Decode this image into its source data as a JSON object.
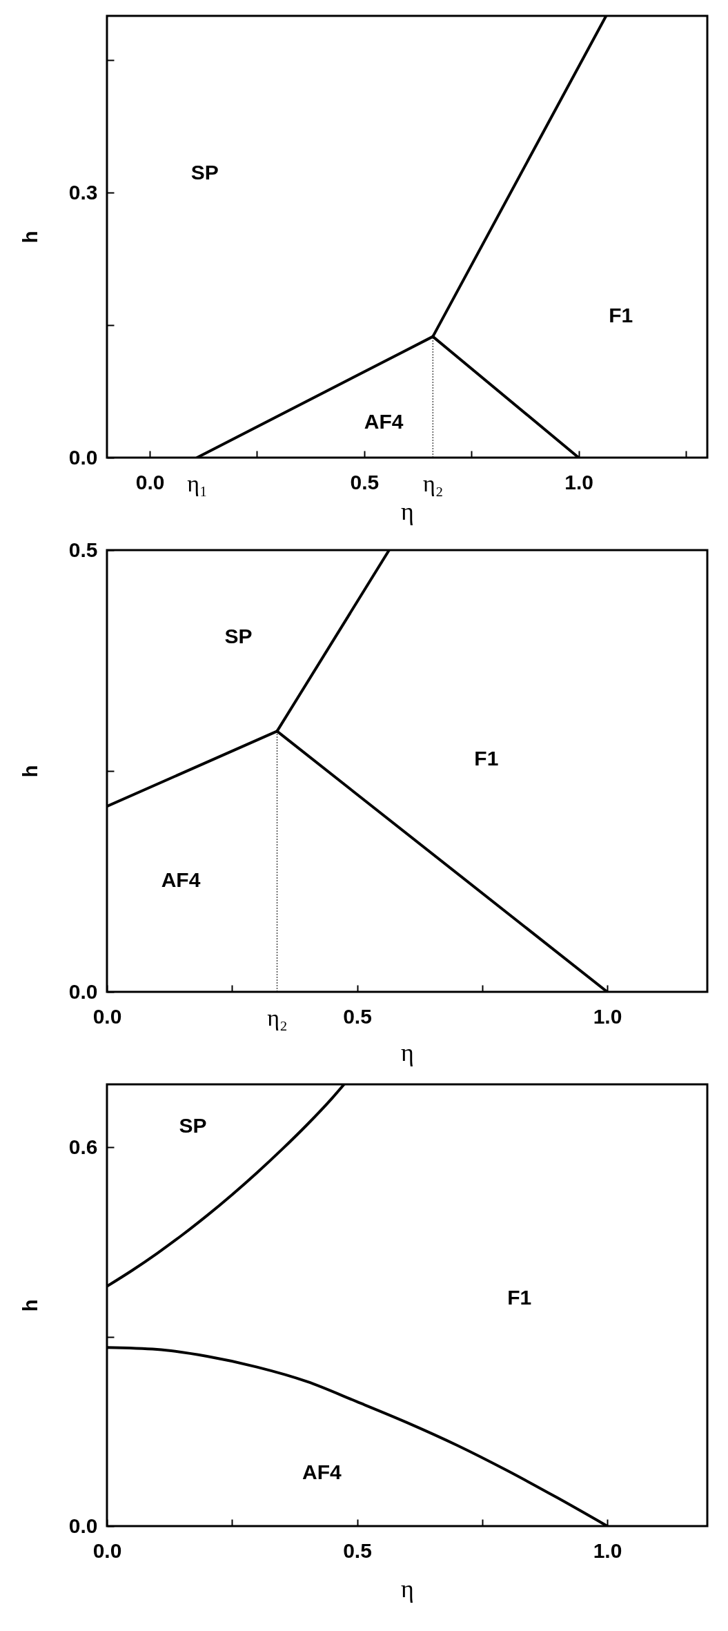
{
  "chart_data": [
    {
      "type": "line",
      "xlabel": "η",
      "ylabel": "h",
      "xlim": [
        -0.1,
        1.3
      ],
      "ylim": [
        0,
        0.5
      ],
      "xticks": [
        {
          "value": 0,
          "label": "0.0"
        },
        {
          "value": 0.11,
          "label": "η₁"
        },
        {
          "value": 0.25,
          "label": null
        },
        {
          "value": 0.5,
          "label": "0.5"
        },
        {
          "value": 0.66,
          "label": "η₂"
        },
        {
          "value": 0.75,
          "label": null
        },
        {
          "value": 1,
          "label": "1.0"
        },
        {
          "value": 1.25,
          "label": null
        }
      ],
      "yticks": [
        {
          "value": 0,
          "label": "0.0"
        },
        {
          "value": 0.15,
          "label": null
        },
        0.3,
        {
          "value": 0.45,
          "label": null
        }
      ],
      "series": [
        {
          "color": "#000000",
          "x": [
            0.11,
            0.66
          ],
          "values": [
            0,
            0.137
          ]
        },
        {
          "color": "#000000",
          "x": [
            0.66,
            1.0
          ],
          "values": [
            0.137,
            0
          ]
        },
        {
          "color": "#000000",
          "x": [
            0.66,
            1.064
          ],
          "values": [
            0.137,
            0.5
          ]
        },
        {
          "color": "#000000",
          "line_style": "dotted",
          "x": [
            0.66,
            0.66
          ],
          "values": [
            0,
            0.137
          ]
        }
      ],
      "annotations": [
        "SP",
        "AF4",
        "F1"
      ]
    },
    {
      "type": "line",
      "xlabel": "η",
      "ylabel": "h",
      "xlim": [
        0,
        1.2
      ],
      "ylim": [
        0,
        0.5
      ],
      "xticks": [
        {
          "value": 0,
          "label": "0.0"
        },
        {
          "value": 0.25,
          "label": null
        },
        {
          "value": 0.34,
          "label": "η₂"
        },
        {
          "value": 0.5,
          "label": "0.5"
        },
        {
          "value": 0.75,
          "label": null
        },
        {
          "value": 1,
          "label": "1.0"
        }
      ],
      "yticks": [
        {
          "value": 0,
          "label": "0.0"
        },
        {
          "value": 0.25,
          "label": null
        },
        0.5
      ],
      "series": [
        {
          "color": "#000000",
          "x": [
            0,
            0.34
          ],
          "values": [
            0.21,
            0.295
          ]
        },
        {
          "color": "#000000",
          "x": [
            0.34,
            1.0
          ],
          "values": [
            0.295,
            0
          ]
        },
        {
          "color": "#000000",
          "x": [
            0.34,
            0.564
          ],
          "values": [
            0.295,
            0.5
          ]
        },
        {
          "color": "#000000",
          "line_style": "dotted",
          "x": [
            0.34,
            0.34
          ],
          "values": [
            0,
            0.295
          ]
        }
      ],
      "annotations": [
        "SP",
        "F1",
        "AF4"
      ]
    },
    {
      "type": "line",
      "xlabel": "η",
      "ylabel": "h",
      "xlim": [
        0,
        1.2
      ],
      "ylim": [
        0,
        0.7
      ],
      "xticks": [
        {
          "value": 0,
          "label": "0.0"
        },
        {
          "value": 0.25,
          "label": null
        },
        {
          "value": 0.5,
          "label": "0.5"
        },
        {
          "value": 0.75,
          "label": null
        },
        {
          "value": 1,
          "label": "1.0"
        }
      ],
      "yticks": [
        {
          "value": 0,
          "label": "0.0"
        },
        {
          "value": 0.3,
          "label": null
        },
        0.6
      ],
      "series": [
        {
          "color": "#000000",
          "x": [
            0,
            0.05,
            0.1,
            0.15,
            0.2,
            0.25,
            0.3,
            0.35,
            0.4,
            0.45,
            0.474
          ],
          "values": [
            0.38,
            0.405,
            0.432,
            0.461,
            0.492,
            0.525,
            0.56,
            0.597,
            0.636,
            0.678,
            0.7
          ]
        },
        {
          "color": "#000000",
          "x": [
            0,
            0.1,
            0.2,
            0.3,
            0.4,
            0.5,
            0.6,
            0.7,
            0.8,
            0.9,
            1.0
          ],
          "values": [
            0.283,
            0.28,
            0.269,
            0.252,
            0.229,
            0.197,
            0.164,
            0.128,
            0.088,
            0.045,
            0
          ]
        }
      ],
      "annotations": [
        "SP",
        "F1",
        "AF4"
      ]
    }
  ]
}
